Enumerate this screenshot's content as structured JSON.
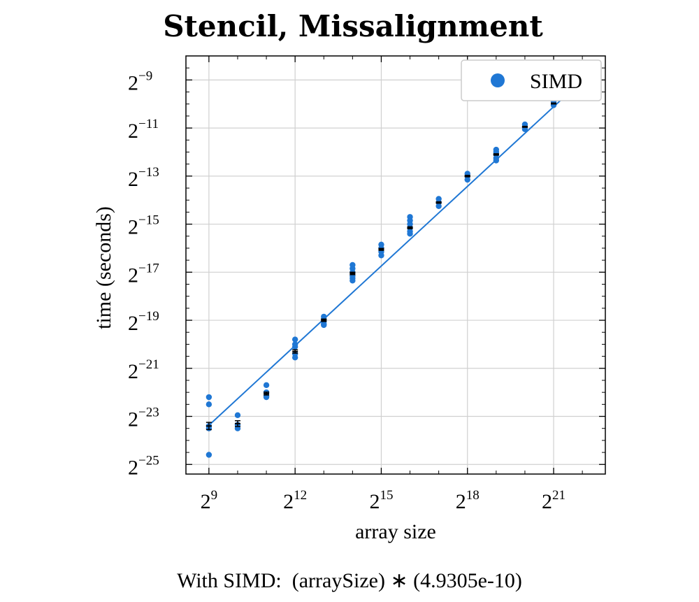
{
  "chart_data": {
    "type": "scatter",
    "title": "Stencil, Missalignment",
    "xlabel": "array size",
    "ylabel": "time (seconds)",
    "x_scale": "log2",
    "y_scale": "log2",
    "xlim_log2": [
      8.2,
      22.8
    ],
    "ylim_log2": [
      -25.4,
      -8.0
    ],
    "x_ticks": [
      {
        "base": "2",
        "exp": "9",
        "log2": 9
      },
      {
        "base": "2",
        "exp": "12",
        "log2": 12
      },
      {
        "base": "2",
        "exp": "15",
        "log2": 15
      },
      {
        "base": "2",
        "exp": "18",
        "log2": 18
      },
      {
        "base": "2",
        "exp": "21",
        "log2": 21
      }
    ],
    "y_ticks": [
      {
        "base": "2",
        "exp": "−9",
        "log2": -9
      },
      {
        "base": "2",
        "exp": "−11",
        "log2": -11
      },
      {
        "base": "2",
        "exp": "−13",
        "log2": -13
      },
      {
        "base": "2",
        "exp": "−15",
        "log2": -15
      },
      {
        "base": "2",
        "exp": "−17",
        "log2": -17
      },
      {
        "base": "2",
        "exp": "−19",
        "log2": -19
      },
      {
        "base": "2",
        "exp": "−21",
        "log2": -21
      },
      {
        "base": "2",
        "exp": "−23",
        "log2": -23
      },
      {
        "base": "2",
        "exp": "−25",
        "log2": -25
      }
    ],
    "grid": true,
    "legend_position": "top-right",
    "series": [
      {
        "name": "SIMD",
        "color": "#1f77d4",
        "points_log2": [
          {
            "x": 9,
            "y": [
              -22.2,
              -22.5,
              -23.4,
              -23.5,
              -24.6
            ]
          },
          {
            "x": 10,
            "y": [
              -22.95,
              -23.35,
              -23.5
            ]
          },
          {
            "x": 11,
            "y": [
              -21.7,
              -22.0,
              -22.15,
              -22.2
            ]
          },
          {
            "x": 12,
            "y": [
              -19.8,
              -20.0,
              -20.1,
              -20.4,
              -20.55
            ]
          },
          {
            "x": 13,
            "y": [
              -18.85,
              -18.95,
              -19.05,
              -19.15,
              -19.2
            ]
          },
          {
            "x": 14,
            "y": [
              -16.7,
              -16.85,
              -17.0,
              -17.15,
              -17.25,
              -17.35
            ]
          },
          {
            "x": 15,
            "y": [
              -15.85,
              -16.0,
              -16.15,
              -16.3
            ]
          },
          {
            "x": 16,
            "y": [
              -14.7,
              -14.85,
              -15.0,
              -15.15,
              -15.3,
              -15.4
            ]
          },
          {
            "x": 17,
            "y": [
              -13.95,
              -14.1,
              -14.25
            ]
          },
          {
            "x": 18,
            "y": [
              -12.9,
              -13.0,
              -13.15
            ]
          },
          {
            "x": 19,
            "y": [
              -11.9,
              -12.0,
              -12.1,
              -12.25,
              -12.35
            ]
          },
          {
            "x": 20,
            "y": [
              -10.85,
              -10.95,
              -11.05
            ]
          },
          {
            "x": 21,
            "y": [
              -9.9,
              -10.05
            ]
          }
        ],
        "means_log2": [
          {
            "x": 9,
            "y": -23.4,
            "err": 0.15
          },
          {
            "x": 10,
            "y": -23.3,
            "err": 0.12
          },
          {
            "x": 11,
            "y": -22.05,
            "err": 0.06
          },
          {
            "x": 12,
            "y": -20.3,
            "err": 0.07
          },
          {
            "x": 13,
            "y": -19.0,
            "err": 0.05
          },
          {
            "x": 14,
            "y": -17.05,
            "err": 0.05
          },
          {
            "x": 15,
            "y": -16.05,
            "err": 0.04
          },
          {
            "x": 16,
            "y": -15.15,
            "err": 0.04
          },
          {
            "x": 17,
            "y": -14.1,
            "err": 0.03
          },
          {
            "x": 18,
            "y": -13.0,
            "err": 0.03
          },
          {
            "x": 19,
            "y": -12.1,
            "err": 0.03
          },
          {
            "x": 20,
            "y": -10.95,
            "err": 0.02
          },
          {
            "x": 21,
            "y": -9.98,
            "err": 0.02
          }
        ],
        "fit_line_log2": {
          "x": [
            9,
            22.1
          ],
          "y": [
            -23.37,
            -8.9
          ]
        }
      }
    ],
    "footer": "With SIMD:  (arraySize) ∗ (4.9305e-10)"
  }
}
